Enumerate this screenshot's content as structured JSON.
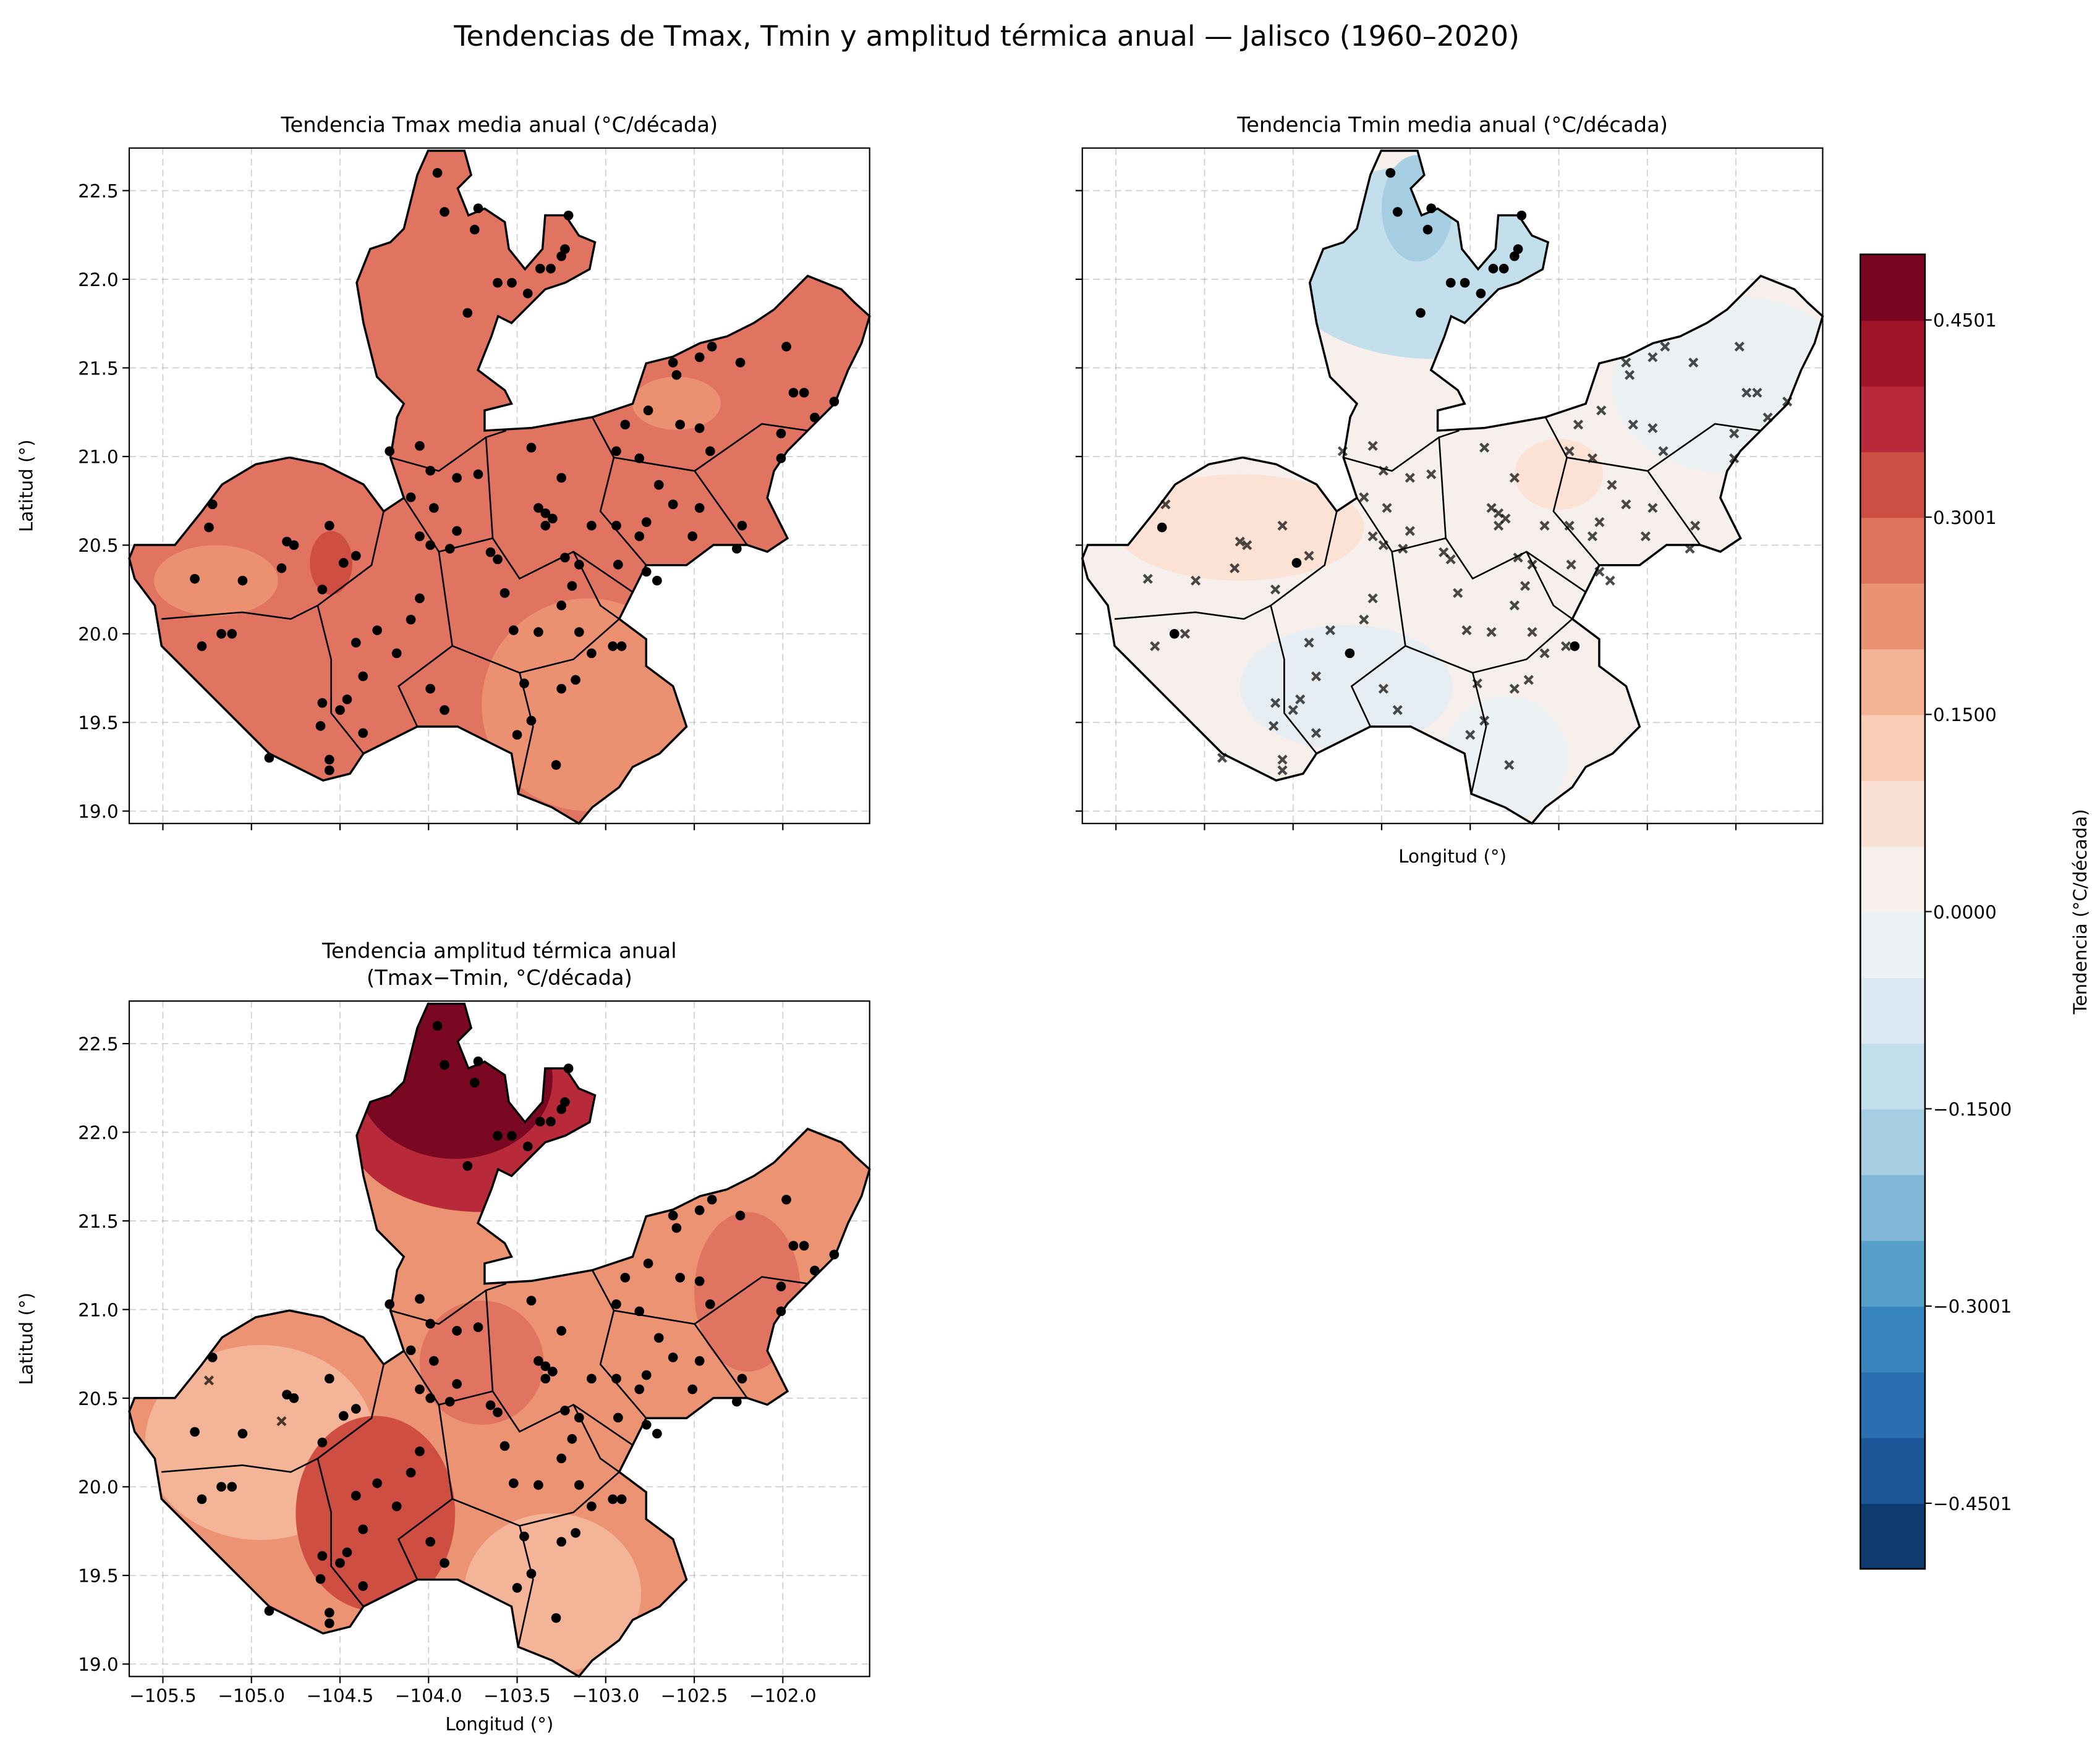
{
  "suptitle": "Tendencias de Tmax, Tmin y amplitud térmica anual — Jalisco (1960–2020)",
  "chart_data": [
    {
      "type": "heatmap",
      "title": "Tendencia Tmax media anual (°C/década)",
      "title2": "",
      "xlabel": "",
      "ylabel": "Latitud (°)",
      "xlim": [
        -105.69,
        -101.51
      ],
      "ylim": [
        18.93,
        22.74
      ],
      "show_xticklabels": false,
      "show_yticklabels": true,
      "grid": true,
      "base_color": "#e07460",
      "zones": [
        {
          "lon": -103.1,
          "lat": 19.6,
          "rlon": 0.6,
          "rlat": 0.6,
          "color": "#ec9072"
        },
        {
          "lon": -105.2,
          "lat": 20.3,
          "rlon": 0.35,
          "rlat": 0.2,
          "color": "#ec9072"
        },
        {
          "lon": -104.55,
          "lat": 20.4,
          "rlon": 0.12,
          "rlat": 0.18,
          "color": "#cf4e42"
        },
        {
          "lon": -102.6,
          "lat": 21.3,
          "rlon": 0.25,
          "rlat": 0.15,
          "color": "#ec9072"
        }
      ]
    },
    {
      "type": "heatmap",
      "title": "Tendencia Tmin media anual (°C/década)",
      "title2": "",
      "xlabel": "Longitud (°)",
      "ylabel": "",
      "xlim": [
        -105.69,
        -101.51
      ],
      "ylim": [
        18.93,
        22.74
      ],
      "show_xticklabels": false,
      "show_yticklabels": false,
      "grid": true,
      "base_color": "#f6efeb",
      "zones": [
        {
          "lon": -103.7,
          "lat": 22.1,
          "rlon": 0.9,
          "rlat": 0.55,
          "color": "#c4dfec"
        },
        {
          "lon": -103.8,
          "lat": 22.4,
          "rlon": 0.2,
          "rlat": 0.3,
          "color": "#a6cee3"
        },
        {
          "lon": -102.0,
          "lat": 21.4,
          "rlon": 0.7,
          "rlat": 0.5,
          "color": "#ecf1f4"
        },
        {
          "lon": -104.8,
          "lat": 20.6,
          "rlon": 0.7,
          "rlat": 0.3,
          "color": "#fbe2d5"
        },
        {
          "lon": -104.2,
          "lat": 19.7,
          "rlon": 0.6,
          "rlat": 0.35,
          "color": "#e6eef4"
        },
        {
          "lon": -103.3,
          "lat": 19.3,
          "rlon": 0.35,
          "rlat": 0.35,
          "color": "#ecf1f4"
        },
        {
          "lon": -103.0,
          "lat": 20.9,
          "rlon": 0.25,
          "rlat": 0.2,
          "color": "#fbe2d5"
        }
      ]
    },
    {
      "type": "heatmap",
      "title": "Tendencia amplitud térmica anual",
      "title2": "(Tmax−Tmin, °C/década)",
      "xlabel": "Longitud (°)",
      "ylabel": "Latitud (°)",
      "xlim": [
        -105.69,
        -101.51
      ],
      "ylim": [
        18.93,
        22.74
      ],
      "show_xticklabels": true,
      "show_yticklabels": true,
      "grid": true,
      "base_color": "#ec9374",
      "zones": [
        {
          "lon": -104.95,
          "lat": 20.25,
          "rlon": 0.65,
          "rlat": 0.55,
          "color": "#f4b497"
        },
        {
          "lon": -103.3,
          "lat": 19.4,
          "rlon": 0.5,
          "rlat": 0.45,
          "color": "#f4b497"
        },
        {
          "lon": -104.3,
          "lat": 19.85,
          "rlon": 0.45,
          "rlat": 0.55,
          "color": "#cf4e42"
        },
        {
          "lon": -103.7,
          "lat": 20.7,
          "rlon": 0.35,
          "rlat": 0.35,
          "color": "#e07460"
        },
        {
          "lon": -102.2,
          "lat": 21.1,
          "rlon": 0.3,
          "rlat": 0.45,
          "color": "#e07460"
        },
        {
          "lon": -103.7,
          "lat": 22.0,
          "rlon": 0.75,
          "rlat": 0.45,
          "color": "#b8293a"
        },
        {
          "lon": -103.85,
          "lat": 22.3,
          "rlon": 0.55,
          "rlat": 0.45,
          "color": "#7a0823"
        }
      ]
    }
  ],
  "xticks": [
    -105.5,
    -105.0,
    -104.5,
    -104.0,
    -103.5,
    -103.0,
    -102.5,
    -102.0
  ],
  "xtick_labels": [
    "−105.5",
    "−105.0",
    "−104.5",
    "−104.0",
    "−103.5",
    "−103.0",
    "−102.5",
    "−102.0"
  ],
  "yticks": [
    19.0,
    19.5,
    20.0,
    20.5,
    21.0,
    21.5,
    22.0,
    22.5
  ],
  "ytick_labels": [
    "19.0",
    "19.5",
    "20.0",
    "20.5",
    "21.0",
    "21.5",
    "22.0",
    "22.5"
  ],
  "stations_note_columns": [
    "lon",
    "lat",
    "sig_tmax",
    "sig_tmin",
    "sig_amplitud"
  ],
  "stations": [
    [
      -103.95,
      22.6,
      1,
      1,
      1
    ],
    [
      -103.91,
      22.38,
      1,
      1,
      1
    ],
    [
      -103.72,
      22.4,
      1,
      1,
      1
    ],
    [
      -103.74,
      22.28,
      1,
      1,
      1
    ],
    [
      -103.78,
      21.81,
      1,
      1,
      1
    ],
    [
      -103.61,
      21.98,
      1,
      1,
      1
    ],
    [
      -103.53,
      21.98,
      1,
      1,
      1
    ],
    [
      -103.44,
      21.92,
      1,
      1,
      1
    ],
    [
      -103.37,
      22.06,
      1,
      1,
      1
    ],
    [
      -103.31,
      22.06,
      1,
      1,
      1
    ],
    [
      -103.25,
      22.13,
      1,
      1,
      1
    ],
    [
      -103.23,
      22.17,
      1,
      1,
      1
    ],
    [
      -103.21,
      22.36,
      1,
      1,
      1
    ],
    [
      -102.62,
      21.53,
      1,
      0,
      1
    ],
    [
      -102.6,
      21.46,
      1,
      0,
      1
    ],
    [
      -102.47,
      21.56,
      1,
      0,
      1
    ],
    [
      -102.4,
      21.62,
      1,
      0,
      1
    ],
    [
      -102.24,
      21.53,
      1,
      0,
      1
    ],
    [
      -101.98,
      21.62,
      1,
      0,
      1
    ],
    [
      -101.94,
      21.36,
      1,
      0,
      1
    ],
    [
      -101.88,
      21.36,
      1,
      0,
      1
    ],
    [
      -101.82,
      21.22,
      1,
      0,
      1
    ],
    [
      -101.71,
      21.31,
      1,
      0,
      1
    ],
    [
      -102.01,
      21.13,
      1,
      0,
      1
    ],
    [
      -102.01,
      20.99,
      1,
      0,
      1
    ],
    [
      -102.41,
      21.03,
      1,
      0,
      1
    ],
    [
      -102.47,
      21.16,
      1,
      0,
      1
    ],
    [
      -102.58,
      21.18,
      1,
      0,
      1
    ],
    [
      -102.76,
      21.26,
      1,
      0,
      1
    ],
    [
      -102.89,
      21.18,
      1,
      0,
      1
    ],
    [
      -102.94,
      21.03,
      1,
      0,
      1
    ],
    [
      -102.81,
      20.99,
      1,
      0,
      1
    ],
    [
      -102.7,
      20.84,
      1,
      0,
      1
    ],
    [
      -102.62,
      20.73,
      1,
      0,
      1
    ],
    [
      -102.47,
      20.71,
      1,
      0,
      1
    ],
    [
      -102.51,
      20.55,
      1,
      0,
      1
    ],
    [
      -102.23,
      20.61,
      1,
      0,
      1
    ],
    [
      -102.26,
      20.48,
      1,
      0,
      1
    ],
    [
      -102.77,
      20.63,
      1,
      0,
      1
    ],
    [
      -102.81,
      20.55,
      1,
      0,
      1
    ],
    [
      -102.94,
      20.61,
      1,
      0,
      1
    ],
    [
      -103.08,
      20.61,
      1,
      0,
      1
    ],
    [
      -102.93,
      20.39,
      1,
      0,
      1
    ],
    [
      -102.77,
      20.35,
      1,
      0,
      1
    ],
    [
      -102.71,
      20.3,
      1,
      0,
      1
    ],
    [
      -103.42,
      21.05,
      1,
      0,
      1
    ],
    [
      -103.25,
      20.88,
      1,
      0,
      1
    ],
    [
      -103.38,
      20.71,
      1,
      0,
      1
    ],
    [
      -103.34,
      20.68,
      1,
      0,
      1
    ],
    [
      -103.3,
      20.65,
      1,
      0,
      1
    ],
    [
      -103.34,
      20.61,
      1,
      0,
      1
    ],
    [
      -103.23,
      20.43,
      1,
      0,
      1
    ],
    [
      -103.15,
      20.39,
      1,
      0,
      1
    ],
    [
      -103.19,
      20.27,
      1,
      0,
      1
    ],
    [
      -103.25,
      20.16,
      1,
      0,
      1
    ],
    [
      -103.15,
      20.01,
      1,
      0,
      1
    ],
    [
      -102.96,
      19.93,
      1,
      0,
      1
    ],
    [
      -102.91,
      19.93,
      1,
      1,
      1
    ],
    [
      -103.08,
      19.89,
      1,
      0,
      1
    ],
    [
      -103.17,
      19.74,
      1,
      0,
      1
    ],
    [
      -103.25,
      19.69,
      1,
      0,
      1
    ],
    [
      -103.46,
      19.72,
      1,
      0,
      1
    ],
    [
      -103.42,
      19.51,
      1,
      0,
      1
    ],
    [
      -103.5,
      19.43,
      1,
      0,
      1
    ],
    [
      -103.28,
      19.26,
      1,
      0,
      1
    ],
    [
      -103.38,
      20.01,
      1,
      0,
      1
    ],
    [
      -103.52,
      20.02,
      1,
      0,
      1
    ],
    [
      -103.57,
      20.23,
      1,
      0,
      1
    ],
    [
      -103.61,
      20.42,
      1,
      0,
      1
    ],
    [
      -103.65,
      20.46,
      1,
      0,
      1
    ],
    [
      -103.84,
      20.58,
      1,
      0,
      1
    ],
    [
      -103.88,
      20.48,
      1,
      0,
      1
    ],
    [
      -103.72,
      20.9,
      1,
      0,
      1
    ],
    [
      -103.84,
      20.88,
      1,
      0,
      1
    ],
    [
      -103.99,
      20.92,
      1,
      0,
      1
    ],
    [
      -103.97,
      20.71,
      1,
      0,
      1
    ],
    [
      -104.1,
      20.77,
      1,
      0,
      1
    ],
    [
      -104.05,
      21.06,
      1,
      0,
      1
    ],
    [
      -104.22,
      21.03,
      1,
      0,
      1
    ],
    [
      -104.05,
      20.55,
      1,
      0,
      1
    ],
    [
      -103.99,
      20.5,
      1,
      0,
      1
    ],
    [
      -104.05,
      20.2,
      1,
      0,
      1
    ],
    [
      -104.1,
      20.08,
      1,
      0,
      1
    ],
    [
      -104.18,
      19.89,
      1,
      1,
      1
    ],
    [
      -104.29,
      20.02,
      1,
      0,
      1
    ],
    [
      -104.41,
      19.95,
      1,
      0,
      1
    ],
    [
      -104.37,
      19.76,
      1,
      0,
      1
    ],
    [
      -103.99,
      19.69,
      1,
      0,
      1
    ],
    [
      -103.91,
      19.57,
      1,
      0,
      1
    ],
    [
      -104.46,
      19.63,
      1,
      0,
      1
    ],
    [
      -104.5,
      19.57,
      1,
      0,
      1
    ],
    [
      -104.6,
      19.61,
      1,
      0,
      1
    ],
    [
      -104.61,
      19.48,
      1,
      0,
      1
    ],
    [
      -104.56,
      19.29,
      1,
      0,
      1
    ],
    [
      -104.56,
      19.23,
      1,
      0,
      1
    ],
    [
      -104.37,
      19.44,
      1,
      0,
      1
    ],
    [
      -104.9,
      19.3,
      1,
      0,
      1
    ],
    [
      -105.28,
      19.93,
      1,
      0,
      1
    ],
    [
      -105.17,
      20.0,
      1,
      1,
      1
    ],
    [
      -105.11,
      20.0,
      1,
      0,
      1
    ],
    [
      -105.32,
      20.31,
      1,
      0,
      1
    ],
    [
      -105.05,
      20.3,
      1,
      0,
      1
    ],
    [
      -105.24,
      20.6,
      1,
      1,
      0
    ],
    [
      -105.22,
      20.73,
      1,
      0,
      1
    ],
    [
      -104.8,
      20.52,
      1,
      0,
      1
    ],
    [
      -104.76,
      20.5,
      1,
      0,
      1
    ],
    [
      -104.83,
      20.37,
      1,
      0,
      0
    ],
    [
      -104.6,
      20.25,
      1,
      0,
      1
    ],
    [
      -104.56,
      20.61,
      1,
      0,
      1
    ],
    [
      -104.48,
      20.4,
      1,
      1,
      1
    ],
    [
      -104.41,
      20.44,
      1,
      0,
      1
    ]
  ],
  "colorbar": {
    "label": "Tendencia (°C/década)",
    "vmin": -0.5,
    "vmax": 0.5,
    "colors": [
      "#0d3b6f",
      "#1b5798",
      "#2a6fb0",
      "#3986bf",
      "#56a0c9",
      "#82b8d7",
      "#a6cee3",
      "#c4dfec",
      "#dce9f2",
      "#ecf1f4",
      "#f7efeb",
      "#fbe1d4",
      "#f9ccb5",
      "#f4b494",
      "#eb9371",
      "#de735b",
      "#cd4f43",
      "#b8293a",
      "#9f1428",
      "#790522"
    ],
    "ticks": [
      -0.4501,
      -0.3001,
      -0.15,
      0.0,
      0.15,
      0.3001,
      0.4501
    ],
    "tick_labels": [
      "−0.4501",
      "−0.3001",
      "−0.1500",
      "0.0000",
      "0.1500",
      "0.3001",
      "0.4501"
    ]
  }
}
